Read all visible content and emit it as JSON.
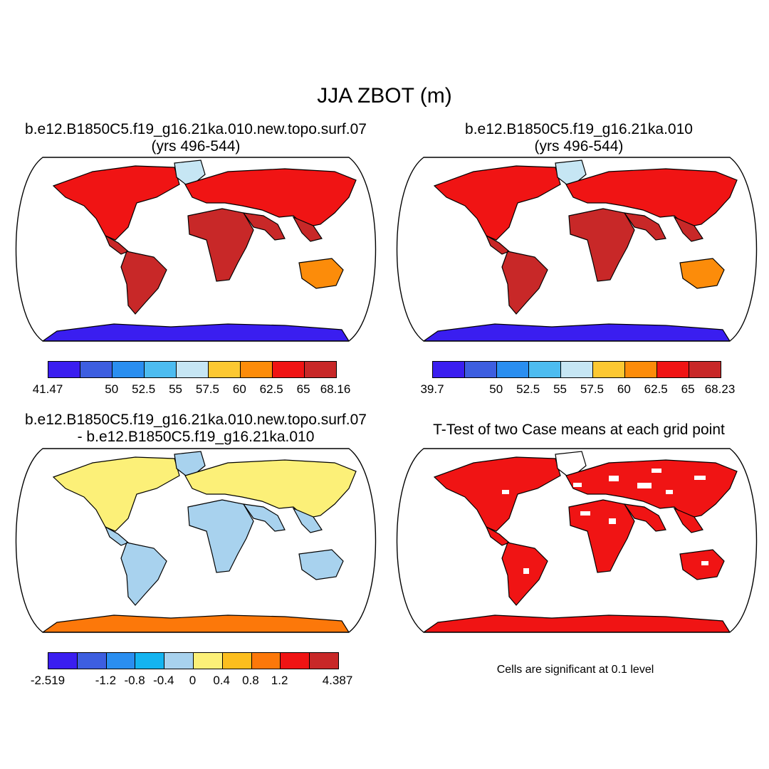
{
  "title": "JJA ZBOT (m)",
  "panels": [
    {
      "title_line1": "b.e12.B1850C5.f19_g16.21ka.010.new.topo.surf.07",
      "title_line2": "(yrs 496-544)",
      "colorbar": {
        "colors": [
          "#3a1ef0",
          "#3d5ee0",
          "#2a8ef0",
          "#4dbcf0",
          "#c6e6f4",
          "#fcc832",
          "#fc8c0a",
          "#f01414",
          "#c82828"
        ],
        "labels": [
          "41.47",
          "",
          "50",
          "52.5",
          "55",
          "57.5",
          "60",
          "62.5",
          "65",
          "68.16"
        ]
      }
    },
    {
      "title_line1": "b.e12.B1850C5.f19_g16.21ka.010",
      "title_line2": "(yrs 496-544)",
      "colorbar": {
        "colors": [
          "#3a1ef0",
          "#3d5ee0",
          "#2a8ef0",
          "#4dbcf0",
          "#c6e6f4",
          "#fcc832",
          "#fc8c0a",
          "#f01414",
          "#c82828"
        ],
        "labels": [
          "39.7",
          "",
          "50",
          "52.5",
          "55",
          "57.5",
          "60",
          "62.5",
          "65",
          "68.23"
        ]
      }
    },
    {
      "title_line1": "b.e12.B1850C5.f19_g16.21ka.010.new.topo.surf.07",
      "title_line2": "- b.e12.B1850C5.f19_g16.21ka.010",
      "colorbar": {
        "colors": [
          "#3a1ef0",
          "#3d5ee0",
          "#2a8ef0",
          "#14b4f0",
          "#a8d2ee",
          "#fcf078",
          "#fcbe1e",
          "#fc780a",
          "#f01414",
          "#c82828"
        ],
        "labels": [
          "-2.519",
          "",
          "-1.2",
          "-0.8",
          "-0.4",
          "0",
          "0.4",
          "0.8",
          "1.2",
          "",
          "4.387"
        ]
      }
    },
    {
      "title_line1": "T-Test of two Case means at each grid point",
      "note": "Cells are significant at 0.1 level"
    }
  ]
}
